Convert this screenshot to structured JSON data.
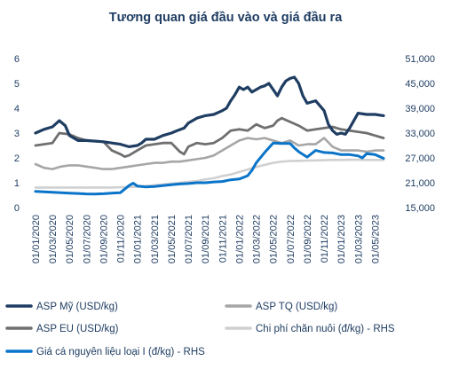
{
  "chart_data": {
    "type": "line",
    "title": "Tương quan giá đầu vào và giá đầu ra",
    "title_color": "#1f3d62",
    "left_axis": {
      "ylim": [
        0,
        6
      ],
      "ticks": [
        "0",
        "1",
        "2",
        "3",
        "4",
        "5",
        "6"
      ]
    },
    "right_axis": {
      "ylim": [
        15000,
        51000
      ],
      "ticks": [
        "15,000",
        "21,000",
        "27,000",
        "33,000",
        "39,000",
        "45,000",
        "51,000"
      ]
    },
    "x_ticks": [
      "01/01/2020",
      "01/03/2020",
      "01/05/2020",
      "01/07/2020",
      "01/09/2020",
      "01/11/2020",
      "01/01/2021",
      "01/03/2021",
      "01/05/2021",
      "01/07/2021",
      "01/09/2021",
      "01/11/2021",
      "01/01/2022",
      "01/03/2022",
      "01/05/2022",
      "01/07/2022",
      "01/09/2022",
      "01/11/2022",
      "01/01/2023",
      "01/03/2023",
      "01/05/2023"
    ],
    "x_range": [
      0,
      41
    ],
    "grid": false,
    "legend_position": "bottom",
    "series": [
      {
        "name": "ASP Mỹ (USD/kg)",
        "axis": "left",
        "color": "#1f3d62",
        "width": 3.2,
        "x": [
          0,
          1,
          2,
          2.8,
          3.5,
          4,
          5,
          6,
          8,
          9,
          10,
          10.5,
          11,
          12,
          12.5,
          13,
          14,
          15,
          16,
          16.7,
          17.5,
          18,
          19,
          20,
          21,
          22,
          22.5,
          23,
          23.5,
          24,
          24.5,
          25,
          25.5,
          26,
          26.5,
          27,
          27.5,
          28,
          28.5,
          29,
          29.5,
          30,
          30.5,
          31,
          31.5,
          32,
          33,
          34,
          34.5,
          35,
          35.5,
          36,
          36.5,
          37,
          38,
          39,
          40,
          41
        ],
        "y": [
          3.0,
          3.15,
          3.25,
          3.5,
          3.3,
          2.9,
          2.7,
          2.7,
          2.65,
          2.6,
          2.55,
          2.5,
          2.45,
          2.5,
          2.6,
          2.75,
          2.75,
          2.9,
          3.0,
          3.1,
          3.2,
          3.4,
          3.6,
          3.7,
          3.75,
          3.9,
          4.0,
          4.3,
          4.55,
          4.85,
          4.75,
          4.85,
          4.65,
          4.75,
          4.85,
          4.9,
          5.0,
          4.75,
          4.5,
          4.85,
          5.1,
          5.2,
          5.25,
          5.0,
          4.5,
          4.2,
          4.3,
          3.9,
          3.35,
          3.1,
          2.95,
          3.0,
          2.95,
          3.2,
          3.8,
          3.75,
          3.75,
          3.7
        ]
      },
      {
        "name": "ASP TQ (USD/kg)",
        "axis": "left",
        "color": "#a6a6a6",
        "width": 2.6,
        "x": [
          0,
          1,
          2,
          3,
          4,
          5,
          6,
          7,
          8,
          9,
          10,
          11,
          12,
          13,
          14,
          15,
          16,
          17,
          18,
          19,
          20,
          21,
          22,
          23,
          24,
          25,
          26,
          27,
          28,
          29,
          30,
          31,
          32,
          33,
          34,
          35,
          36,
          37,
          38,
          39,
          40,
          41
        ],
        "y": [
          1.75,
          1.6,
          1.55,
          1.65,
          1.7,
          1.7,
          1.65,
          1.6,
          1.55,
          1.55,
          1.6,
          1.65,
          1.7,
          1.75,
          1.8,
          1.8,
          1.85,
          1.85,
          1.9,
          1.95,
          2.0,
          2.1,
          2.3,
          2.5,
          2.7,
          2.8,
          2.75,
          2.8,
          2.7,
          2.6,
          2.7,
          2.5,
          2.55,
          2.55,
          2.8,
          2.45,
          2.3,
          2.3,
          2.3,
          2.25,
          2.3,
          2.3
        ]
      },
      {
        "name": "ASP EU (USD/kg)",
        "axis": "left",
        "color": "#6f6f6f",
        "width": 2.8,
        "x": [
          0,
          1,
          2,
          2.8,
          4,
          5,
          6,
          8,
          9,
          10,
          10.5,
          11,
          12,
          13,
          14,
          15,
          16,
          17,
          17.5,
          18,
          19,
          20,
          21,
          22,
          23,
          24,
          25,
          26,
          27,
          28,
          28.5,
          29,
          30,
          31,
          32,
          33,
          34,
          35,
          36,
          37,
          38,
          39,
          40,
          41
        ],
        "y": [
          2.5,
          2.55,
          2.6,
          3.0,
          2.95,
          2.8,
          2.7,
          2.65,
          2.3,
          2.15,
          2.05,
          2.1,
          2.3,
          2.5,
          2.55,
          2.6,
          2.6,
          2.25,
          2.15,
          2.45,
          2.6,
          2.55,
          2.6,
          2.8,
          3.1,
          3.15,
          3.1,
          3.35,
          3.2,
          3.3,
          3.5,
          3.6,
          3.45,
          3.3,
          3.1,
          3.15,
          3.2,
          3.25,
          3.15,
          3.1,
          3.05,
          3.0,
          2.9,
          2.8
        ]
      },
      {
        "name": "Chi phí chăn nuôi (đ/kg) - RHS",
        "axis": "right",
        "color": "#d0d0d0",
        "width": 2.6,
        "x": [
          0,
          1,
          2,
          3,
          4,
          5,
          6,
          7,
          8,
          9,
          10,
          11,
          12,
          13,
          14,
          15,
          16,
          17,
          18,
          19,
          20,
          21,
          22,
          23,
          24,
          25,
          26,
          27,
          28,
          29,
          30,
          31,
          32,
          33,
          34,
          35,
          36,
          37,
          38,
          39,
          40,
          41
        ],
        "y": [
          19850,
          19850,
          19850,
          19850,
          19850,
          19850,
          19850,
          19850,
          19850,
          19850,
          19900,
          19950,
          20050,
          20200,
          20400,
          20600,
          20800,
          21000,
          21200,
          21400,
          21800,
          22100,
          22600,
          23000,
          23600,
          24200,
          24800,
          25300,
          25800,
          26100,
          26250,
          26300,
          26350,
          26400,
          26450,
          26500,
          26500,
          26550,
          26550,
          26500,
          26500,
          26500
        ]
      },
      {
        "name": "Giá cá nguyên liệu loại I (đ/kg) - RHS",
        "axis": "right",
        "color": "#0a74c9",
        "width": 3.0,
        "x": [
          0,
          1,
          2,
          3,
          4,
          5,
          6,
          7,
          8,
          9,
          10,
          11,
          11.5,
          12,
          13,
          14,
          15,
          16,
          17,
          18,
          19,
          20,
          21,
          22,
          23,
          24,
          25,
          25.5,
          26,
          27,
          28,
          29,
          30,
          30.5,
          31,
          32,
          33,
          34,
          35,
          36,
          37,
          38,
          38.5,
          39,
          40,
          41
        ],
        "y": [
          18900,
          18800,
          18700,
          18600,
          18500,
          18400,
          18300,
          18250,
          18350,
          18500,
          18600,
          20300,
          20900,
          20200,
          20000,
          20100,
          20300,
          20500,
          20700,
          20800,
          21000,
          21000,
          21200,
          21300,
          21700,
          21900,
          22700,
          24000,
          25800,
          28300,
          30600,
          30500,
          30500,
          29400,
          28500,
          27200,
          28800,
          28300,
          28200,
          27800,
          27800,
          27500,
          27000,
          28000,
          27800,
          26900
        ]
      }
    ]
  },
  "legend": {
    "items": [
      {
        "label": "ASP Mỹ (USD/kg)",
        "color": "#1f3d62"
      },
      {
        "label": "ASP TQ (USD/kg)",
        "color": "#a6a6a6"
      },
      {
        "label": "ASP EU (USD/kg)",
        "color": "#6f6f6f"
      },
      {
        "label": "Chi phí chăn nuôi (đ/kg) - RHS",
        "color": "#d0d0d0"
      },
      {
        "label": "Giá cá nguyên liệu loại I (đ/kg) - RHS",
        "color": "#0a74c9"
      }
    ]
  },
  "colors": {
    "text": "#1f3d62",
    "tick_text": "#1f3d62"
  }
}
